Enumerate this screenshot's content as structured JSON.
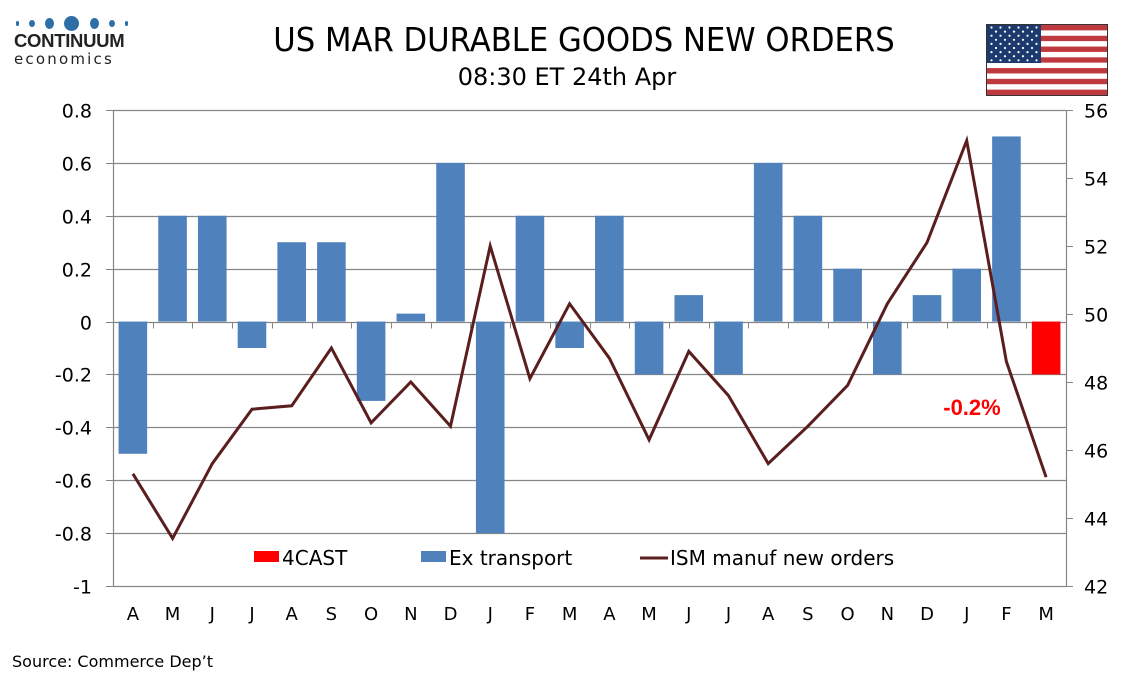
{
  "header": {
    "logo_main": "CONTINUUM",
    "logo_sub": "economics",
    "title": "US MAR DURABLE GOODS NEW ORDERS",
    "subtitle": "08:30 ET 24th Apr",
    "flag_icon": "us-flag-icon"
  },
  "footer": {
    "source": "Source: Commerce Dep’t"
  },
  "colors": {
    "bars": "#4f81bd",
    "forecast": "#ff0000",
    "line": "#5a1e1e",
    "grid": "#868686"
  },
  "chart_data": {
    "type": "bar",
    "title": "US MAR DURABLE GOODS NEW ORDERS",
    "subtitle": "08:30 ET 24th Apr",
    "categories": [
      "A",
      "M",
      "J",
      "J",
      "A",
      "S",
      "O",
      "N",
      "D",
      "J",
      "F",
      "M",
      "A",
      "M",
      "J",
      "J",
      "A",
      "S",
      "O",
      "N",
      "D",
      "J",
      "F",
      "M"
    ],
    "series": [
      {
        "name": "Ex transport",
        "type": "bar",
        "axis": "left",
        "values": [
          -0.5,
          0.4,
          0.4,
          -0.1,
          0.3,
          0.3,
          -0.3,
          0.03,
          0.6,
          -0.8,
          0.4,
          -0.1,
          0.4,
          -0.2,
          0.1,
          -0.2,
          0.6,
          0.4,
          0.2,
          -0.2,
          0.1,
          0.2,
          0.7,
          null
        ]
      },
      {
        "name": "4CAST",
        "type": "bar",
        "axis": "left",
        "values": [
          null,
          null,
          null,
          null,
          null,
          null,
          null,
          null,
          null,
          null,
          null,
          null,
          null,
          null,
          null,
          null,
          null,
          null,
          null,
          null,
          null,
          null,
          null,
          -0.2
        ]
      },
      {
        "name": "ISM manuf new orders",
        "type": "line",
        "axis": "right",
        "values": [
          45.3,
          43.4,
          45.6,
          47.2,
          47.3,
          49.0,
          46.8,
          48.0,
          46.7,
          52.0,
          48.1,
          50.3,
          48.7,
          46.3,
          48.9,
          47.6,
          45.6,
          46.7,
          47.9,
          50.3,
          52.1,
          55.1,
          48.6,
          45.2
        ]
      }
    ],
    "left_axis": {
      "min": -1,
      "max": 0.8,
      "step": 0.2,
      "ticks": [
        "0.8",
        "0.6",
        "0.4",
        "0.2",
        "0",
        "-0.2",
        "-0.4",
        "-0.6",
        "-0.8",
        "-1"
      ]
    },
    "right_axis": {
      "min": 42,
      "max": 56,
      "step": 2,
      "ticks": [
        "56",
        "54",
        "52",
        "50",
        "48",
        "46",
        "44",
        "42"
      ]
    },
    "annotation": "-0.2%",
    "legend": {
      "position": "bottom-inside",
      "entries": [
        "4CAST",
        "Ex transport",
        "ISM manuf new orders"
      ]
    },
    "grid": true
  }
}
